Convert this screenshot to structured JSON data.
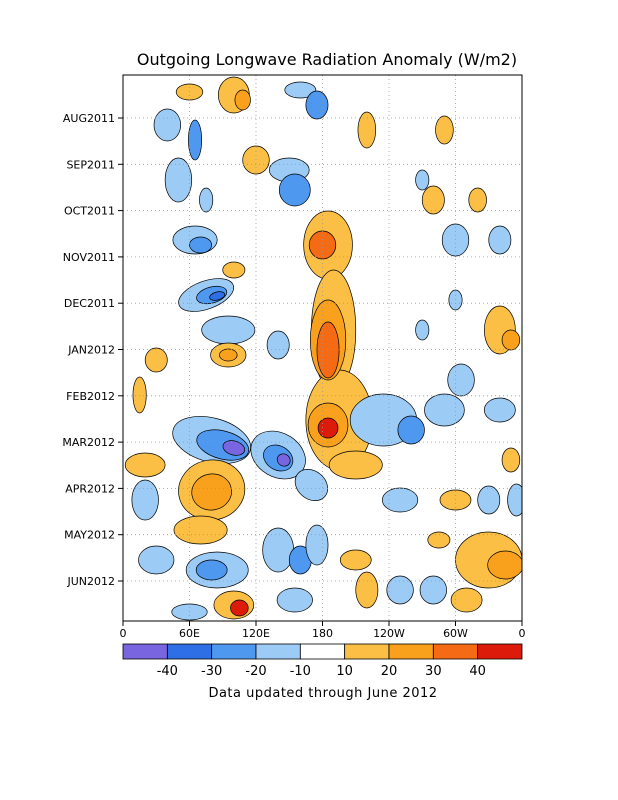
{
  "chart_data": {
    "type": "heatmap",
    "title": "Outgoing Longwave Radiation Anomaly (W/m2)",
    "x_ticks": [
      "0",
      "60E",
      "120E",
      "180",
      "120W",
      "60W",
      "0"
    ],
    "x_range": [
      0,
      360
    ],
    "y_ticks": [
      "AUG2011",
      "SEP2011",
      "OCT2011",
      "NOV2011",
      "DEC2011",
      "JAN2012",
      "FEB2012",
      "MAR2012",
      "APR2012",
      "MAY2012",
      "JUN2012"
    ],
    "y_order": "time increases downward",
    "colorbar": {
      "levels": [
        "-40",
        "-30",
        "-20",
        "-10",
        "10",
        "20",
        "30",
        "40"
      ],
      "colors": [
        "#7a65e0",
        "#2f6fe6",
        "#4f98f0",
        "#9ccbf6",
        "#ffffff",
        "#fbbf45",
        "#f9a11c",
        "#f56a14",
        "#dd1b0a"
      ]
    },
    "features": [
      {
        "lon_range": [
          150,
          210
        ],
        "period": "OCT2011-MAR2012",
        "sign": "positive",
        "peak": 40
      },
      {
        "lon_range": [
          60,
          160
        ],
        "period": "NOV2011-MAR2012",
        "sign": "negative",
        "peak": -40
      },
      {
        "lon_range": [
          30,
          110
        ],
        "period": "MAR2012-MAY2012",
        "sign": "positive",
        "peak": 30
      },
      {
        "lon_range": [
          30,
          120
        ],
        "period": "MAY2012-JUN2012",
        "sign": "negative",
        "peak": -30
      }
    ],
    "footnote": "Data updated through June 2012"
  }
}
